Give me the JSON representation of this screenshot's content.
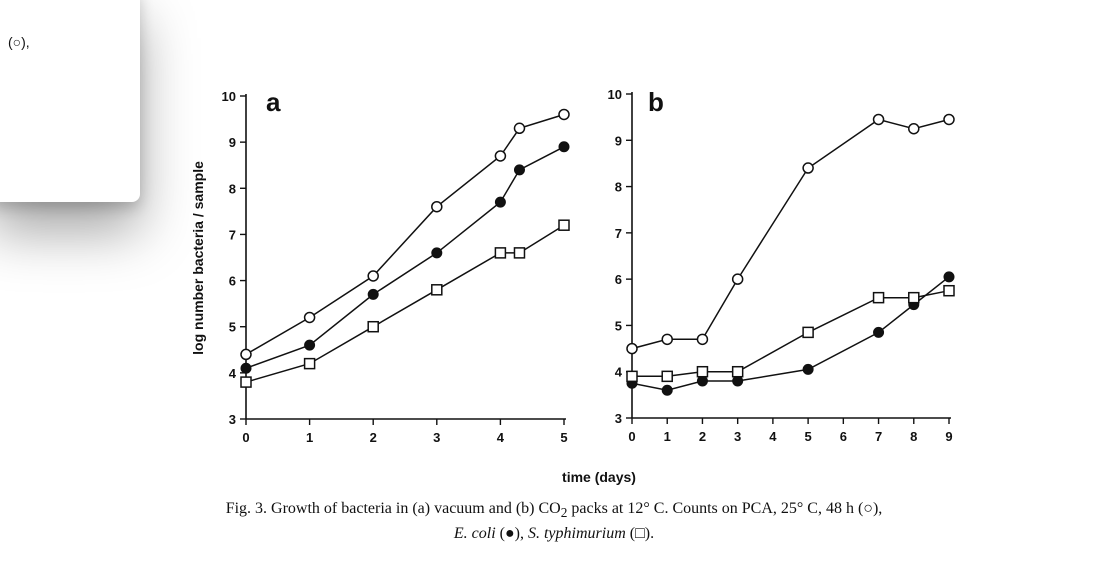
{
  "overlay": {
    "text": "(○),"
  },
  "chart_data": [
    {
      "type": "line",
      "panel_label": "a",
      "ylabel": "log number bacteria / sample",
      "xlabel": "time (days)",
      "xlim": [
        0,
        5
      ],
      "ylim": [
        3,
        10
      ],
      "x_ticks": [
        "0",
        "1",
        "2",
        "3",
        "4",
        "5"
      ],
      "y_ticks": [
        "3",
        "4",
        "5",
        "6",
        "7",
        "8",
        "9",
        "10"
      ],
      "series": [
        {
          "marker": "open-circle",
          "x": [
            0,
            1,
            2,
            3,
            4,
            4.3,
            5
          ],
          "y": [
            4.4,
            5.2,
            6.1,
            7.6,
            8.7,
            9.3,
            9.6
          ]
        },
        {
          "marker": "filled-circle",
          "x": [
            0,
            1,
            2,
            3,
            4,
            4.3,
            5
          ],
          "y": [
            4.1,
            4.6,
            5.7,
            6.6,
            7.7,
            8.4,
            8.9
          ]
        },
        {
          "marker": "open-square",
          "x": [
            0,
            1,
            2,
            3,
            4,
            4.3,
            5
          ],
          "y": [
            3.8,
            4.2,
            5.0,
            5.8,
            6.6,
            6.6,
            7.2
          ]
        }
      ]
    },
    {
      "type": "line",
      "panel_label": "b",
      "xlim": [
        0,
        9
      ],
      "ylim": [
        3,
        10
      ],
      "x_ticks": [
        "0",
        "1",
        "2",
        "3",
        "4",
        "5",
        "6",
        "7",
        "8",
        "9"
      ],
      "y_ticks": [
        "3",
        "4",
        "5",
        "6",
        "7",
        "8",
        "9",
        "10"
      ],
      "series": [
        {
          "marker": "open-circle",
          "x": [
            0,
            1,
            2,
            3,
            5,
            7,
            8,
            9
          ],
          "y": [
            4.5,
            4.7,
            4.7,
            6.0,
            8.4,
            9.45,
            9.25,
            9.45
          ]
        },
        {
          "marker": "filled-circle",
          "x": [
            0,
            1,
            2,
            3,
            5,
            7,
            8,
            9
          ],
          "y": [
            3.75,
            3.6,
            3.8,
            3.8,
            4.05,
            4.85,
            5.45,
            6.05
          ]
        },
        {
          "marker": "open-square",
          "x": [
            0,
            1,
            2,
            3,
            5,
            7,
            8,
            9
          ],
          "y": [
            3.9,
            3.9,
            4.0,
            4.0,
            4.85,
            5.6,
            5.6,
            5.75
          ]
        }
      ]
    }
  ],
  "caption": {
    "line1_a": "Fig. 3. Growth of bacteria in (a) vacuum and (b) CO",
    "line1_sub": "2",
    "line1_b": " packs at 12° C. Counts on PCA, 25° C, 48 h (○),",
    "line2_coli": "E. coli",
    "line2_mid": " (●), ",
    "line2_typh": "S. typhimurium",
    "line2_end": " (□)."
  }
}
